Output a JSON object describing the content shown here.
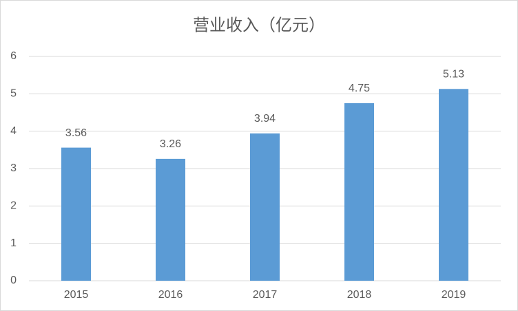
{
  "chart_data": {
    "type": "bar",
    "title": "营业收入（亿元）",
    "categories": [
      "2015",
      "2016",
      "2017",
      "2018",
      "2019"
    ],
    "values": [
      3.56,
      3.26,
      3.94,
      4.75,
      5.13
    ],
    "color": "#5b9bd5",
    "ylim": [
      0,
      6
    ],
    "yticks": [
      0,
      1,
      2,
      3,
      4,
      5,
      6
    ],
    "grid": true
  }
}
